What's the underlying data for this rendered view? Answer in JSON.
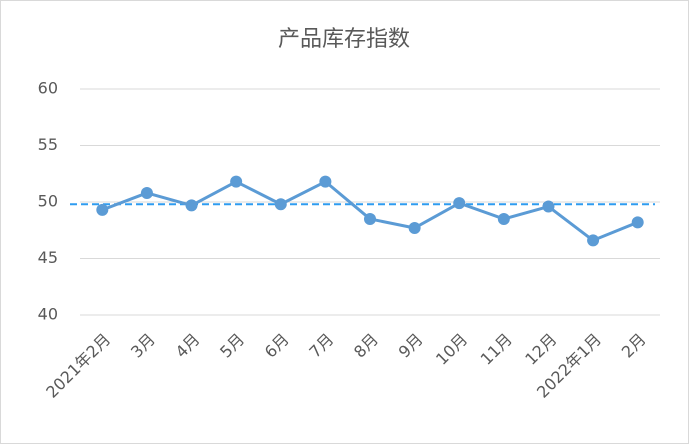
{
  "chart_data": {
    "type": "line",
    "title": "产品库存指数",
    "categories": [
      "2021年2月",
      "3月",
      "4月",
      "5月",
      "6月",
      "7月",
      "8月",
      "9月",
      "10月",
      "11月",
      "12月",
      "2022年1月",
      "2月"
    ],
    "series": [
      {
        "color": "#5b9bd5",
        "values": [
          49.3,
          50.8,
          49.7,
          51.8,
          49.8,
          51.8,
          48.5,
          47.7,
          49.9,
          48.5,
          49.6,
          46.6,
          48.2
        ]
      }
    ],
    "reference_line": {
      "value": 49.8,
      "color": "#2e9cf0",
      "dashed": true
    },
    "ylim": [
      40,
      60
    ],
    "yticks": [
      40,
      45,
      50,
      55,
      60
    ],
    "grid": true
  }
}
